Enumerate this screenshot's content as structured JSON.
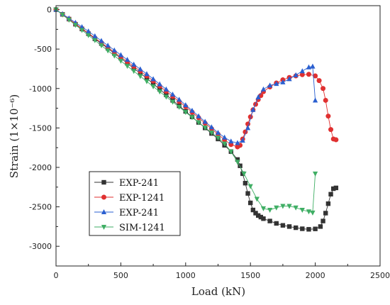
{
  "chart_data": {
    "type": "line",
    "xlabel": "Load (kN)",
    "ylabel": "Strain (1×10⁻⁶)",
    "xlim": [
      0,
      2500
    ],
    "ylim": [
      -3250,
      50
    ],
    "xticks": [
      0,
      500,
      1000,
      1500,
      2000,
      2500
    ],
    "yticks": [
      0,
      -500,
      -1000,
      -1500,
      -2000,
      -2500,
      -3000
    ],
    "legend_position": "bottom-left",
    "series": [
      {
        "name": "EXP-241",
        "color": "#333333",
        "marker": "square",
        "x": [
          0,
          50,
          100,
          150,
          200,
          250,
          300,
          350,
          400,
          450,
          500,
          550,
          600,
          650,
          700,
          750,
          800,
          850,
          900,
          950,
          1000,
          1050,
          1100,
          1150,
          1200,
          1250,
          1300,
          1350,
          1400,
          1420,
          1440,
          1460,
          1480,
          1500,
          1520,
          1540,
          1560,
          1580,
          1600,
          1650,
          1700,
          1750,
          1800,
          1850,
          1900,
          1950,
          2000,
          2040,
          2060,
          2080,
          2100,
          2120,
          2140,
          2160
        ],
        "values": [
          0,
          -60,
          -120,
          -185,
          -245,
          -305,
          -370,
          -430,
          -490,
          -555,
          -615,
          -680,
          -745,
          -805,
          -870,
          -940,
          -1010,
          -1080,
          -1150,
          -1220,
          -1290,
          -1360,
          -1430,
          -1500,
          -1570,
          -1640,
          -1720,
          -1800,
          -1900,
          -1980,
          -2080,
          -2200,
          -2330,
          -2450,
          -2540,
          -2580,
          -2610,
          -2630,
          -2650,
          -2680,
          -2710,
          -2735,
          -2750,
          -2765,
          -2778,
          -2785,
          -2780,
          -2750,
          -2680,
          -2580,
          -2460,
          -2340,
          -2270,
          -2260
        ]
      },
      {
        "name": "EXP-1241",
        "color": "#e03030",
        "marker": "circle",
        "x": [
          0,
          50,
          100,
          150,
          200,
          250,
          300,
          350,
          400,
          450,
          500,
          550,
          600,
          650,
          700,
          750,
          800,
          850,
          900,
          950,
          1000,
          1050,
          1100,
          1150,
          1200,
          1250,
          1300,
          1350,
          1400,
          1420,
          1440,
          1460,
          1480,
          1500,
          1520,
          1540,
          1560,
          1580,
          1600,
          1650,
          1700,
          1750,
          1800,
          1850,
          1900,
          1950,
          2000,
          2030,
          2060,
          2080,
          2100,
          2120,
          2140,
          2160
        ],
        "values": [
          0,
          -60,
          -120,
          -180,
          -240,
          -300,
          -360,
          -420,
          -480,
          -540,
          -600,
          -660,
          -720,
          -780,
          -840,
          -905,
          -970,
          -1035,
          -1100,
          -1165,
          -1230,
          -1300,
          -1370,
          -1440,
          -1510,
          -1580,
          -1650,
          -1710,
          -1740,
          -1720,
          -1640,
          -1550,
          -1450,
          -1360,
          -1270,
          -1200,
          -1140,
          -1090,
          -1040,
          -980,
          -930,
          -890,
          -860,
          -840,
          -825,
          -820,
          -840,
          -900,
          -1000,
          -1150,
          -1350,
          -1520,
          -1640,
          -1650
        ]
      },
      {
        "name": "EXP-241",
        "color": "#2a5fd0",
        "marker": "triangle-up",
        "x": [
          0,
          50,
          100,
          150,
          200,
          250,
          300,
          350,
          400,
          450,
          500,
          550,
          600,
          650,
          700,
          750,
          800,
          850,
          900,
          950,
          1000,
          1050,
          1100,
          1150,
          1200,
          1250,
          1300,
          1350,
          1400,
          1440,
          1480,
          1520,
          1560,
          1600,
          1650,
          1700,
          1750,
          1800,
          1850,
          1900,
          1950,
          1980,
          2000
        ],
        "values": [
          0,
          -55,
          -110,
          -165,
          -220,
          -275,
          -335,
          -395,
          -455,
          -515,
          -575,
          -635,
          -695,
          -755,
          -815,
          -880,
          -945,
          -1010,
          -1075,
          -1140,
          -1210,
          -1280,
          -1350,
          -1420,
          -1490,
          -1560,
          -1620,
          -1670,
          -1690,
          -1660,
          -1500,
          -1270,
          -1110,
          -1010,
          -960,
          -940,
          -920,
          -880,
          -830,
          -780,
          -730,
          -720,
          -1150
        ]
      },
      {
        "name": "SIM-1241",
        "color": "#3fae64",
        "marker": "triangle-down",
        "x": [
          0,
          50,
          100,
          150,
          200,
          250,
          300,
          350,
          400,
          450,
          500,
          550,
          600,
          650,
          700,
          750,
          800,
          850,
          900,
          950,
          1000,
          1050,
          1100,
          1150,
          1200,
          1250,
          1300,
          1350,
          1400,
          1450,
          1500,
          1550,
          1600,
          1650,
          1700,
          1750,
          1800,
          1850,
          1900,
          1950,
          1980,
          2000
        ],
        "values": [
          0,
          -65,
          -130,
          -195,
          -260,
          -325,
          -390,
          -455,
          -520,
          -585,
          -650,
          -715,
          -780,
          -845,
          -910,
          -975,
          -1040,
          -1105,
          -1170,
          -1235,
          -1300,
          -1365,
          -1430,
          -1495,
          -1560,
          -1625,
          -1700,
          -1800,
          -1930,
          -2080,
          -2240,
          -2400,
          -2520,
          -2540,
          -2510,
          -2490,
          -2490,
          -2510,
          -2540,
          -2560,
          -2575,
          -2080
        ]
      }
    ]
  }
}
